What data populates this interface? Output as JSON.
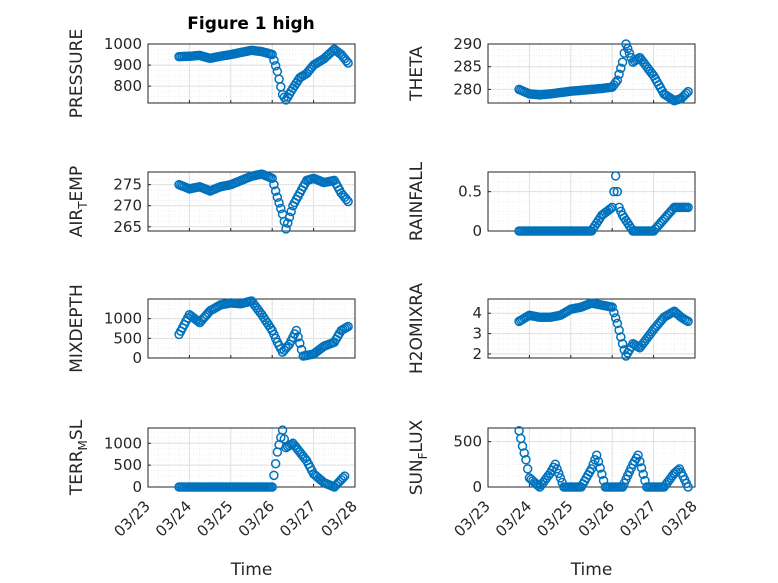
{
  "figure_title": "Figure 1 high",
  "colors": {
    "marker": "#0072BD",
    "axis": "#262626",
    "grid_major": "#dfdfdf",
    "grid_minor": "#efefef"
  },
  "chart_data": [
    {
      "type": "scatter",
      "id": "pressure",
      "ylabel_main": "PRESSURE",
      "ylabel_sub": "",
      "ylabel_tail": "",
      "xlabel": "",
      "xticks": [],
      "xlim": [
        "03/23",
        "03/28"
      ],
      "ylim": [
        720,
        1000
      ],
      "yticks": [
        800,
        900,
        1000
      ],
      "grid": true,
      "points": [
        [
          "03/23 18:00",
          940
        ],
        [
          "03/24 00:00",
          942
        ],
        [
          "03/24 06:00",
          946
        ],
        [
          "03/24 12:00",
          932
        ],
        [
          "03/24 18:00",
          942
        ],
        [
          "03/25 00:00",
          950
        ],
        [
          "03/25 06:00",
          960
        ],
        [
          "03/25 12:00",
          970
        ],
        [
          "03/25 18:00",
          964
        ],
        [
          "03/26 00:00",
          950
        ],
        [
          "03/26 03:00",
          870
        ],
        [
          "03/26 06:00",
          760
        ],
        [
          "03/26 08:00",
          735
        ],
        [
          "03/26 12:00",
          790
        ],
        [
          "03/26 16:00",
          840
        ],
        [
          "03/26 20:00",
          860
        ],
        [
          "03/27 00:00",
          900
        ],
        [
          "03/27 06:00",
          930
        ],
        [
          "03/27 12:00",
          975
        ],
        [
          "03/27 16:00",
          950
        ],
        [
          "03/27 20:00",
          910
        ]
      ]
    },
    {
      "type": "scatter",
      "id": "theta",
      "ylabel_main": "THETA",
      "ylabel_sub": "",
      "ylabel_tail": "",
      "xlabel": "",
      "xticks": [],
      "xlim": [
        "03/23",
        "03/28"
      ],
      "ylim": [
        277,
        290
      ],
      "yticks": [
        280,
        285,
        290
      ],
      "grid": true,
      "points": [
        [
          "03/23 18:00",
          280
        ],
        [
          "03/24 00:00",
          279
        ],
        [
          "03/24 06:00",
          278.8
        ],
        [
          "03/24 12:00",
          279
        ],
        [
          "03/24 18:00",
          279.3
        ],
        [
          "03/25 00:00",
          279.6
        ],
        [
          "03/25 06:00",
          279.8
        ],
        [
          "03/25 12:00",
          280
        ],
        [
          "03/25 18:00",
          280.2
        ],
        [
          "03/26 00:00",
          280.5
        ],
        [
          "03/26 03:00",
          282
        ],
        [
          "03/26 06:00",
          286
        ],
        [
          "03/26 08:00",
          290
        ],
        [
          "03/26 12:00",
          286
        ],
        [
          "03/26 16:00",
          287
        ],
        [
          "03/26 20:00",
          285
        ],
        [
          "03/27 00:00",
          283
        ],
        [
          "03/27 06:00",
          279
        ],
        [
          "03/27 12:00",
          277.5
        ],
        [
          "03/27 16:00",
          278
        ],
        [
          "03/27 20:00",
          279.5
        ]
      ]
    },
    {
      "type": "scatter",
      "id": "airtemp",
      "ylabel_main": "AIR",
      "ylabel_sub": "T",
      "ylabel_tail": "EMP",
      "xlabel": "",
      "xticks": [],
      "xlim": [
        "03/23",
        "03/28"
      ],
      "ylim": [
        264,
        278
      ],
      "yticks": [
        265,
        270,
        275
      ],
      "grid": true,
      "points": [
        [
          "03/23 18:00",
          275
        ],
        [
          "03/24 00:00",
          274
        ],
        [
          "03/24 06:00",
          274.5
        ],
        [
          "03/24 12:00",
          273.5
        ],
        [
          "03/24 18:00",
          274.5
        ],
        [
          "03/25 00:00",
          275
        ],
        [
          "03/25 06:00",
          276
        ],
        [
          "03/25 12:00",
          277
        ],
        [
          "03/25 18:00",
          277.5
        ],
        [
          "03/26 00:00",
          276.5
        ],
        [
          "03/26 03:00",
          272
        ],
        [
          "03/26 06:00",
          268
        ],
        [
          "03/26 08:00",
          264.5
        ],
        [
          "03/26 12:00",
          270
        ],
        [
          "03/26 16:00",
          273
        ],
        [
          "03/26 20:00",
          276
        ],
        [
          "03/27 00:00",
          276.5
        ],
        [
          "03/27 06:00",
          275.5
        ],
        [
          "03/27 12:00",
          276
        ],
        [
          "03/27 16:00",
          273
        ],
        [
          "03/27 20:00",
          271
        ]
      ]
    },
    {
      "type": "scatter",
      "id": "rainfall",
      "ylabel_main": "RAINFALL",
      "ylabel_sub": "",
      "ylabel_tail": "",
      "xlabel": "",
      "xticks": [],
      "xlim": [
        "03/23",
        "03/28"
      ],
      "ylim": [
        0,
        0.75
      ],
      "yticks": [
        0,
        0.5
      ],
      "grid": true,
      "points": [
        [
          "03/23 18:00",
          0
        ],
        [
          "03/24 00:00",
          0
        ],
        [
          "03/24 06:00",
          0
        ],
        [
          "03/24 12:00",
          0
        ],
        [
          "03/24 18:00",
          0
        ],
        [
          "03/25 00:00",
          0
        ],
        [
          "03/25 06:00",
          0
        ],
        [
          "03/25 12:00",
          0
        ],
        [
          "03/25 18:00",
          0.2
        ],
        [
          "03/26 00:00",
          0.3
        ],
        [
          "03/26 02:00",
          0.7
        ],
        [
          "03/26 04:00",
          0.3
        ],
        [
          "03/26 06:00",
          0.2
        ],
        [
          "03/26 12:00",
          0
        ],
        [
          "03/27 00:00",
          0
        ],
        [
          "03/27 12:00",
          0.3
        ],
        [
          "03/27 16:00",
          0.3
        ],
        [
          "03/27 20:00",
          0.3
        ]
      ]
    },
    {
      "type": "scatter",
      "id": "mixdepth",
      "ylabel_main": "MIXDEPTH",
      "ylabel_sub": "",
      "ylabel_tail": "",
      "xlabel": "",
      "xticks": [],
      "xlim": [
        "03/23",
        "03/28"
      ],
      "ylim": [
        0,
        1500
      ],
      "yticks": [
        0,
        500,
        1000
      ],
      "grid": true,
      "points": [
        [
          "03/23 18:00",
          600
        ],
        [
          "03/24 00:00",
          1100
        ],
        [
          "03/24 06:00",
          900
        ],
        [
          "03/24 12:00",
          1200
        ],
        [
          "03/24 18:00",
          1350
        ],
        [
          "03/25 00:00",
          1400
        ],
        [
          "03/25 06:00",
          1380
        ],
        [
          "03/25 12:00",
          1450
        ],
        [
          "03/25 18:00",
          1100
        ],
        [
          "03/26 00:00",
          700
        ],
        [
          "03/26 03:00",
          400
        ],
        [
          "03/26 06:00",
          150
        ],
        [
          "03/26 10:00",
          350
        ],
        [
          "03/26 14:00",
          700
        ],
        [
          "03/26 18:00",
          50
        ],
        [
          "03/27 00:00",
          100
        ],
        [
          "03/27 06:00",
          300
        ],
        [
          "03/27 12:00",
          400
        ],
        [
          "03/27 16:00",
          700
        ],
        [
          "03/27 20:00",
          800
        ]
      ]
    },
    {
      "type": "scatter",
      "id": "h2omixra",
      "ylabel_main": "H2OMIXRA",
      "ylabel_sub": "",
      "ylabel_tail": "",
      "xlabel": "",
      "xticks": [],
      "xlim": [
        "03/23",
        "03/28"
      ],
      "ylim": [
        1.8,
        4.7
      ],
      "yticks": [
        2,
        3,
        4
      ],
      "grid": true,
      "points": [
        [
          "03/23 18:00",
          3.6
        ],
        [
          "03/24 00:00",
          3.9
        ],
        [
          "03/24 06:00",
          3.8
        ],
        [
          "03/24 12:00",
          3.8
        ],
        [
          "03/24 18:00",
          3.9
        ],
        [
          "03/25 00:00",
          4.2
        ],
        [
          "03/25 06:00",
          4.3
        ],
        [
          "03/25 12:00",
          4.5
        ],
        [
          "03/25 18:00",
          4.4
        ],
        [
          "03/26 00:00",
          4.3
        ],
        [
          "03/26 03:00",
          3.5
        ],
        [
          "03/26 06:00",
          2.5
        ],
        [
          "03/26 08:00",
          1.9
        ],
        [
          "03/26 12:00",
          2.5
        ],
        [
          "03/26 16:00",
          2.3
        ],
        [
          "03/27 00:00",
          3.2
        ],
        [
          "03/27 06:00",
          3.8
        ],
        [
          "03/27 12:00",
          4.1
        ],
        [
          "03/27 16:00",
          3.8
        ],
        [
          "03/27 20:00",
          3.6
        ]
      ]
    },
    {
      "type": "scatter",
      "id": "terrmsl",
      "ylabel_main": "TERR",
      "ylabel_sub": "M",
      "ylabel_tail": "SL",
      "xlabel": "Time",
      "xticks": [
        "03/23",
        "03/24",
        "03/25",
        "03/26",
        "03/27",
        "03/28"
      ],
      "xlim": [
        "03/23",
        "03/28"
      ],
      "ylim": [
        0,
        1350
      ],
      "yticks": [
        0,
        500,
        1000
      ],
      "grid": true,
      "points": [
        [
          "03/23 18:00",
          0
        ],
        [
          "03/24 00:00",
          0
        ],
        [
          "03/24 12:00",
          0
        ],
        [
          "03/25 00:00",
          0
        ],
        [
          "03/25 12:00",
          0
        ],
        [
          "03/25 18:00",
          0
        ],
        [
          "03/26 00:00",
          0
        ],
        [
          "03/26 03:00",
          800
        ],
        [
          "03/26 06:00",
          1300
        ],
        [
          "03/26 08:00",
          900
        ],
        [
          "03/26 12:00",
          1000
        ],
        [
          "03/26 16:00",
          800
        ],
        [
          "03/26 20:00",
          600
        ],
        [
          "03/27 00:00",
          300
        ],
        [
          "03/27 06:00",
          100
        ],
        [
          "03/27 12:00",
          0
        ],
        [
          "03/27 18:00",
          250
        ]
      ]
    },
    {
      "type": "scatter",
      "id": "sunflux",
      "ylabel_main": "SUN",
      "ylabel_sub": "F",
      "ylabel_tail": "LUX",
      "xlabel": "Time",
      "xticks": [
        "03/23",
        "03/24",
        "03/25",
        "03/26",
        "03/27",
        "03/28"
      ],
      "xlim": [
        "03/23",
        "03/28"
      ],
      "ylim": [
        0,
        650
      ],
      "yticks": [
        0,
        500
      ],
      "grid": true,
      "points": [
        [
          "03/23 18:00",
          620
        ],
        [
          "03/23 20:00",
          450
        ],
        [
          "03/23 22:00",
          300
        ],
        [
          "03/24 00:00",
          100
        ],
        [
          "03/24 06:00",
          0
        ],
        [
          "03/24 12:00",
          150
        ],
        [
          "03/24 15:00",
          250
        ],
        [
          "03/24 20:00",
          0
        ],
        [
          "03/25 06:00",
          0
        ],
        [
          "03/25 12:00",
          200
        ],
        [
          "03/25 15:00",
          350
        ],
        [
          "03/25 20:00",
          0
        ],
        [
          "03/26 06:00",
          0
        ],
        [
          "03/26 12:00",
          250
        ],
        [
          "03/26 15:00",
          350
        ],
        [
          "03/26 20:00",
          0
        ],
        [
          "03/27 06:00",
          0
        ],
        [
          "03/27 12:00",
          150
        ],
        [
          "03/27 15:00",
          200
        ],
        [
          "03/27 20:00",
          0
        ]
      ]
    }
  ]
}
